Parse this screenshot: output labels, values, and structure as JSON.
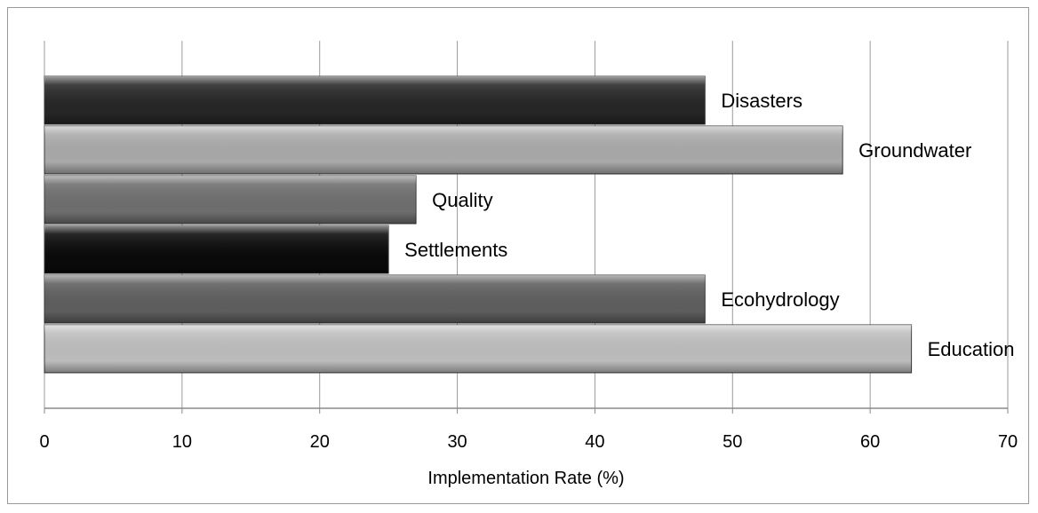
{
  "chart_data": {
    "type": "bar",
    "orientation": "horizontal",
    "categories": [
      "Disasters",
      "Groundwater",
      "Quality",
      "Settlements",
      "Ecohydrology",
      "Education"
    ],
    "values": [
      48,
      58,
      27,
      25,
      48,
      63
    ],
    "bar_colors": [
      "#262626",
      "#a9a9a9",
      "#6e6e6e",
      "#0a0a0a",
      "#5e5e5e",
      "#bdbdbd"
    ],
    "title": "",
    "xlabel": "Implementation Rate (%)",
    "ylabel": "",
    "xlim": [
      0,
      70
    ],
    "xticks": [
      0,
      10,
      20,
      30,
      40,
      50,
      60,
      70
    ],
    "grid": "vertical",
    "legend": "none"
  }
}
